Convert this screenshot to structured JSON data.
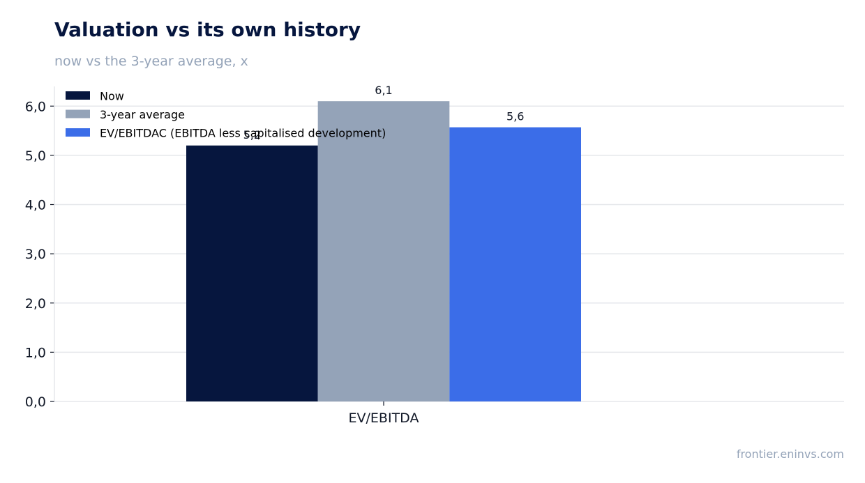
{
  "header": {
    "title": "Valuation vs its own history",
    "subtitle": "now vs the 3-year average, x"
  },
  "footer": {
    "source": "frontier.eninvs.com"
  },
  "chart_data": {
    "type": "bar",
    "categories": [
      "EV/EBITDA"
    ],
    "series": [
      {
        "name": "Now",
        "values": [
          5.2
        ],
        "labels": [
          "5,2"
        ],
        "color": "#06163e"
      },
      {
        "name": "3-year average",
        "values": [
          6.1
        ],
        "labels": [
          "6,1"
        ],
        "color": "#94a3b8"
      },
      {
        "name": "EV/EBITDAC (EBITDA less capitalised development)",
        "values": [
          5.57
        ],
        "labels": [
          "5,6"
        ],
        "color": "#3b6de8"
      }
    ],
    "ylim": [
      0,
      6.4
    ],
    "yticks": [
      0,
      1,
      2,
      3,
      4,
      5,
      6
    ],
    "ytick_labels": [
      "0,0",
      "1,0",
      "2,0",
      "3,0",
      "4,0",
      "5,0",
      "6,0"
    ],
    "grid": true,
    "legend_position": "top-left"
  }
}
